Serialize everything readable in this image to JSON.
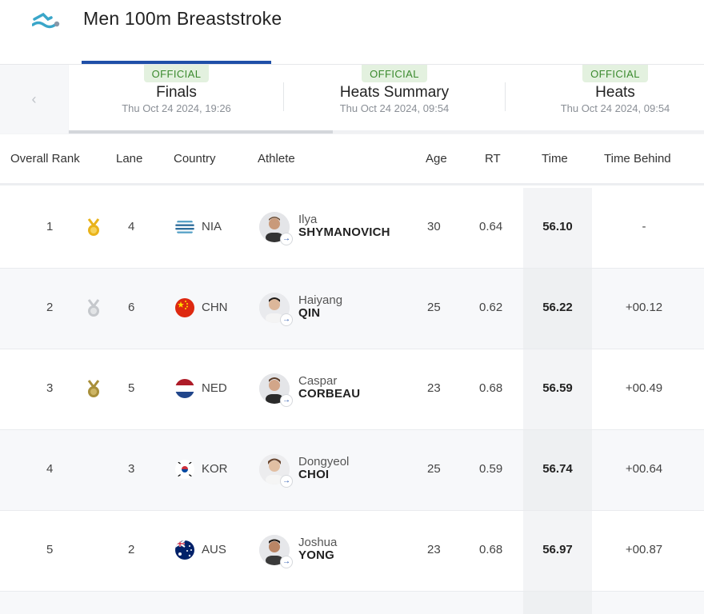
{
  "header": {
    "title": "Men 100m Breaststroke",
    "icon": "swimmer-icon"
  },
  "tabs": [
    {
      "badge": "OFFICIAL",
      "label": "Finals",
      "date": "Thu Oct 24 2024, 19:26"
    },
    {
      "badge": "OFFICIAL",
      "label": "Heats Summary",
      "date": "Thu Oct 24 2024, 09:54"
    },
    {
      "badge": "OFFICIAL",
      "label": "Heats",
      "date": "Thu Oct 24 2024, 09:54"
    }
  ],
  "columns": {
    "rank": "Overall Rank",
    "lane": "Lane",
    "country": "Country",
    "athlete": "Athlete",
    "age": "Age",
    "rt": "RT",
    "time": "Time",
    "behind": "Time Behind"
  },
  "rows": [
    {
      "rank": "1",
      "medal": "gold",
      "lane": "4",
      "country": "NIA",
      "first": "Ilya",
      "last": "SHYMANOVICH",
      "age": "30",
      "rt": "0.64",
      "time": "56.10",
      "behind": "-"
    },
    {
      "rank": "2",
      "medal": "silver",
      "lane": "6",
      "country": "CHN",
      "first": "Haiyang",
      "last": "QIN",
      "age": "25",
      "rt": "0.62",
      "time": "56.22",
      "behind": "+00.12"
    },
    {
      "rank": "3",
      "medal": "bronze",
      "lane": "5",
      "country": "NED",
      "first": "Caspar",
      "last": "CORBEAU",
      "age": "23",
      "rt": "0.68",
      "time": "56.59",
      "behind": "+00.49"
    },
    {
      "rank": "4",
      "medal": "",
      "lane": "3",
      "country": "KOR",
      "first": "Dongyeol",
      "last": "CHOI",
      "age": "25",
      "rt": "0.59",
      "time": "56.74",
      "behind": "+00.64"
    },
    {
      "rank": "5",
      "medal": "",
      "lane": "2",
      "country": "AUS",
      "first": "Joshua",
      "last": "YONG",
      "age": "23",
      "rt": "0.68",
      "time": "56.97",
      "behind": "+00.87"
    }
  ],
  "colors": {
    "accent": "#1f4fa8",
    "official_badge_bg": "#e3f1df",
    "official_badge_text": "#3b8a2e",
    "gold": "#e9b31a",
    "silver": "#c5c8cc",
    "bronze": "#a88f3a"
  }
}
